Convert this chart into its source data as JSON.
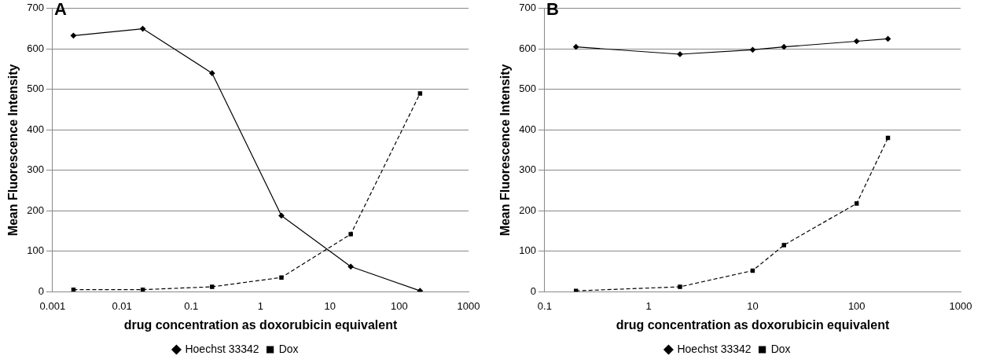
{
  "chart_data": [
    {
      "type": "line",
      "annotations": [
        "A"
      ],
      "xlabel": "drug concentration as doxorubicin equivalent",
      "ylabel": "Mean Fluorescence Intensity",
      "log": "x",
      "xlim": [
        0.001,
        1000
      ],
      "xticks": [
        0.001,
        0.01,
        0.1,
        1,
        10,
        100,
        1000
      ],
      "ylim": [
        0,
        700
      ],
      "yticks": [
        0,
        100,
        200,
        300,
        400,
        500,
        600,
        700
      ],
      "grid": "y",
      "legend": "bottom",
      "series": [
        {
          "name": "Hoechst 33342",
          "color": "#000000",
          "marker": "diamond",
          "line_style": "solid",
          "x": [
            0.002,
            0.02,
            0.2,
            2,
            20,
            200
          ],
          "values": [
            633,
            650,
            540,
            188,
            62,
            2
          ]
        },
        {
          "name": "Dox",
          "color": "#000000",
          "marker": "square",
          "line_style": "dashed",
          "x": [
            0.002,
            0.02,
            0.2,
            2,
            20,
            200
          ],
          "values": [
            5,
            5,
            12,
            35,
            142,
            490
          ]
        }
      ]
    },
    {
      "type": "line",
      "annotations": [
        "B"
      ],
      "xlabel": "drug concentration as doxorubicin equivalent",
      "ylabel": "Mean Fluorescence Intensity",
      "log": "x",
      "xlim": [
        0.1,
        1000
      ],
      "xticks": [
        0.1,
        1,
        10,
        100,
        1000
      ],
      "ylim": [
        0,
        700
      ],
      "yticks": [
        0,
        100,
        200,
        300,
        400,
        500,
        600,
        700
      ],
      "grid": "y",
      "legend": "bottom",
      "series": [
        {
          "name": "Hoechst 33342",
          "color": "#000000",
          "marker": "diamond",
          "line_style": "solid",
          "x": [
            0.2,
            2,
            10,
            20,
            100,
            200
          ],
          "values": [
            605,
            587,
            598,
            605,
            619,
            625
          ]
        },
        {
          "name": "Dox",
          "color": "#000000",
          "marker": "square",
          "line_style": "dashed",
          "x": [
            0.2,
            2,
            10,
            20,
            100,
            200
          ],
          "values": [
            2,
            12,
            52,
            115,
            218,
            380
          ]
        }
      ]
    }
  ]
}
